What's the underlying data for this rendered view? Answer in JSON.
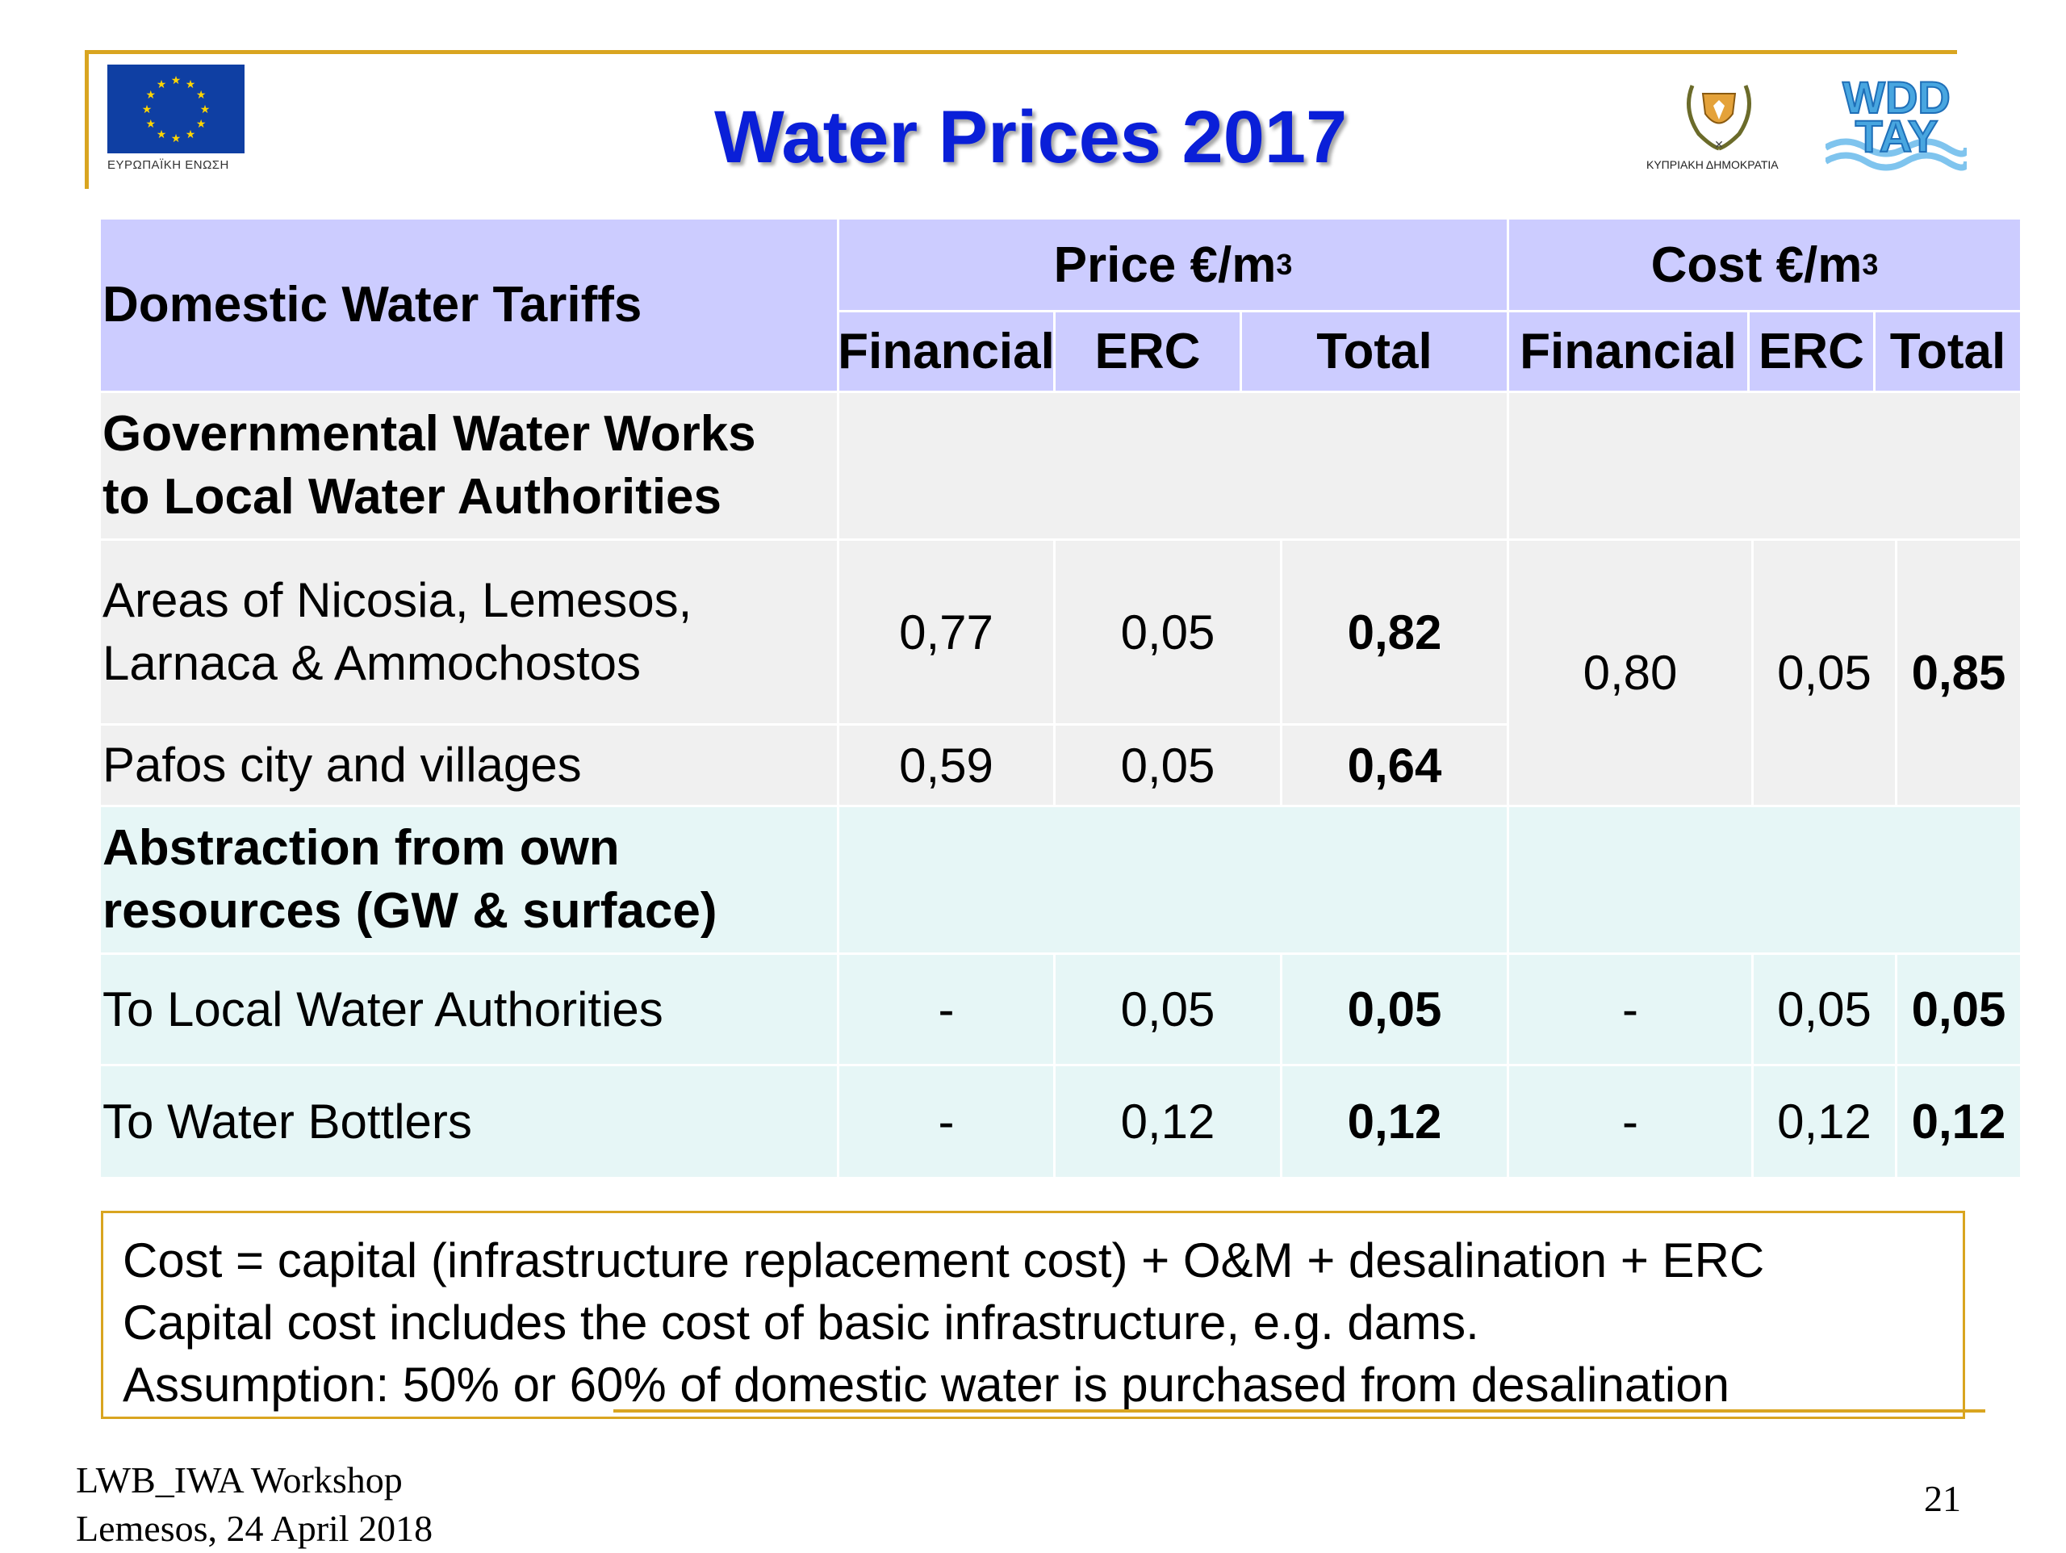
{
  "header": {
    "title": "Water Prices 2017",
    "eu_caption": "ΕΥΡΩΠΑΪΚΗ ΕΝΩΣΗ",
    "cy_caption": "ΚΥΠΡΙΑΚΗ ΔΗΜΟΚΡΑΤΙΑ",
    "wdd_text": [
      "WDD",
      "TAY"
    ]
  },
  "table": {
    "corner_header": "Domestic Water Tariffs",
    "price_group": "Price €/m",
    "cost_group": "Cost €/m",
    "unit_exponent": "3",
    "sub_headers": [
      "Financial",
      "ERC",
      "Total",
      "Financial",
      "ERC",
      "Total"
    ],
    "section1_title": [
      "Governmental Water Works",
      "to Local Water Authorities"
    ],
    "row1_label": [
      "Areas of Nicosia, Lemesos,",
      "Larnaca & Ammochostos"
    ],
    "row1_values": [
      "0,77",
      "0,05",
      "0,82"
    ],
    "row2_label": "Pafos city and villages",
    "row2_values": [
      "0,59",
      "0,05",
      "0,64"
    ],
    "shared_cost_values": [
      "0,80",
      "0,05",
      "0,85"
    ],
    "section2_title": [
      "Abstraction from own",
      "resources (GW & surface)"
    ],
    "row3_label": "To Local Water Authorities",
    "row3_values": [
      "-",
      "0,05",
      "0,05",
      "-",
      "0,05",
      "0,05"
    ],
    "row4_label": "To Water Bottlers",
    "row4_values": [
      "-",
      "0,12",
      "0,12",
      "-",
      "0,12",
      "0,12"
    ]
  },
  "footnote": {
    "lines": [
      "Cost = capital (infrastructure replacement cost) + O&M + desalination + ERC",
      "Capital cost includes the cost of basic infrastructure, e.g. dams.",
      "Assumption:  50% or 60% of domestic water is purchased from desalination"
    ]
  },
  "footer": {
    "event": "LWB_IWA Workshop",
    "place_date": "Lemesos, 24 April 2018",
    "page_number": "21"
  },
  "colors": {
    "header_fill": "#ccccff",
    "section1_fill": "#f0f0f0",
    "section2_fill": "#e6f6f6",
    "title_blue": "#0a1fd8",
    "accent_gold": "#d9a520",
    "eu_blue": "#0f3fa3",
    "eu_star": "#ffd500"
  }
}
